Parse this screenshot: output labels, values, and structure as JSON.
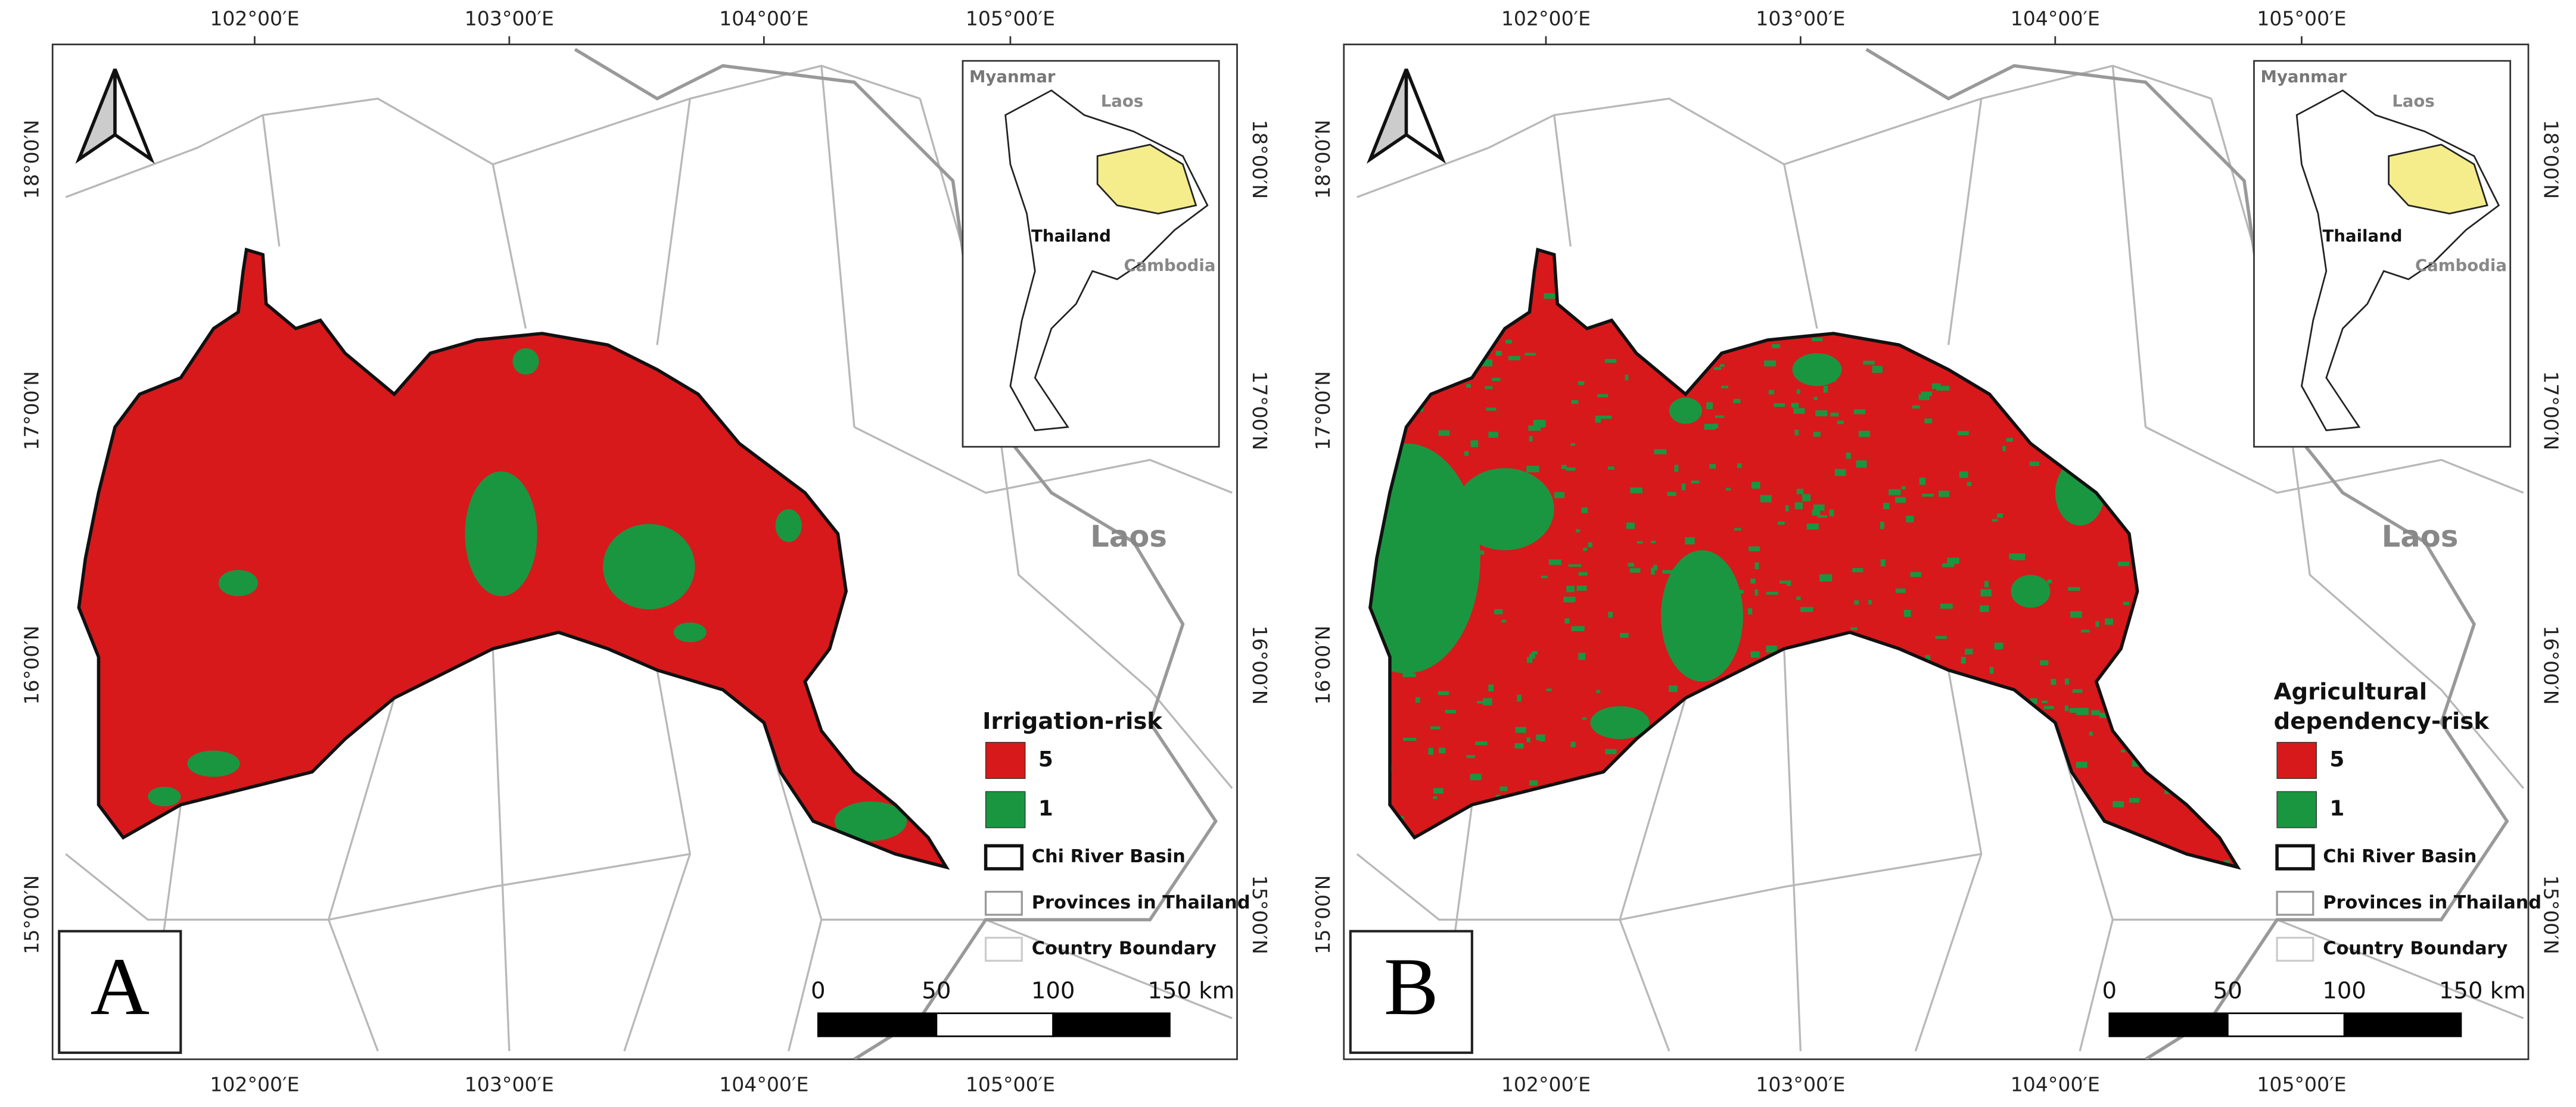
{
  "panels": [
    {
      "label": "A",
      "legend_title": [
        "Irrigation-risk"
      ],
      "legend": [
        {
          "label": "5",
          "color": "#d7191c"
        },
        {
          "label": "1",
          "color": "#1a9641"
        },
        {
          "label": "Chi River Basin"
        },
        {
          "label": "Provinces in Thailand"
        },
        {
          "label": "Country Boundary"
        }
      ]
    },
    {
      "label": "B",
      "legend_title": [
        "Agricultural",
        "dependency-risk"
      ],
      "legend": [
        {
          "label": "5",
          "color": "#d7191c"
        },
        {
          "label": "1",
          "color": "#1a9641"
        },
        {
          "label": "Chi River Basin"
        },
        {
          "label": "Provinces in Thailand"
        },
        {
          "label": "Country Boundary"
        }
      ]
    }
  ],
  "longitude_labels": [
    "102°00′E",
    "103°00′E",
    "104°00′E",
    "105°00′E"
  ],
  "latitude_labels": [
    "18°00′N",
    "17°00′N",
    "16°00′N",
    "15°00′N"
  ],
  "inset_labels": [
    "Myanmar",
    "Laos",
    "Thailand",
    "Cambodia"
  ],
  "country_label": "Laos",
  "scale_bar": [
    "0",
    "50",
    "100",
    "150 km"
  ]
}
